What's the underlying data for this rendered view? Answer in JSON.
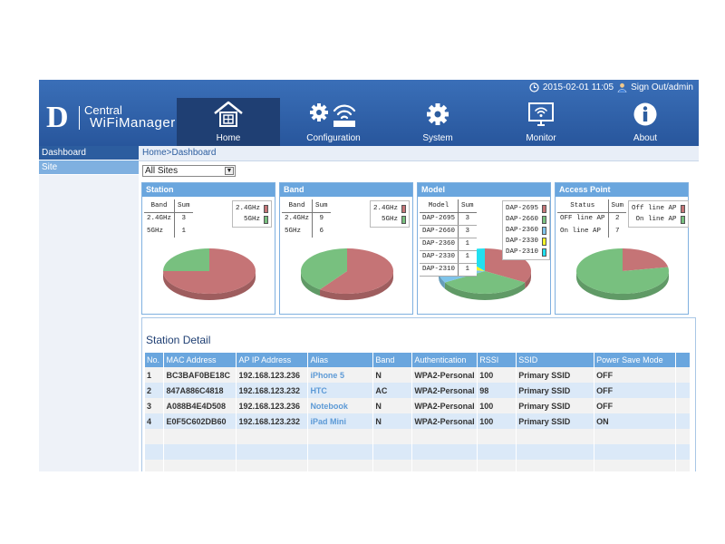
{
  "topbar": {
    "datetime": "2015-02-01 11:05",
    "sign_out": "Sign Out/admin"
  },
  "logo": {
    "letter": "D",
    "line1": "Central",
    "line2": "WiFiManager"
  },
  "nav": [
    {
      "label": "Home",
      "icon": "home-icon"
    },
    {
      "label": "Configuration",
      "icon": "configuration-icon"
    },
    {
      "label": "System",
      "icon": "gear-icon"
    },
    {
      "label": "Monitor",
      "icon": "monitor-icon"
    },
    {
      "label": "About",
      "icon": "info-icon"
    }
  ],
  "sidebar": {
    "items": [
      {
        "label": "Dashboard"
      },
      {
        "label": "Site"
      }
    ]
  },
  "breadcrumb": "Home>Dashboard",
  "site_select": {
    "value": "All Sites"
  },
  "colors": {
    "red": "#c57476",
    "green": "#78c07f",
    "yellow": "#f3f32a",
    "cyan": "#22e0f0",
    "blue": "#7fc4ea",
    "header": "#2c5d9f"
  },
  "panels": {
    "station": {
      "title": "Station",
      "headers": [
        "Band",
        "Sum"
      ],
      "rows": [
        [
          "2.4GHz",
          "3"
        ],
        [
          "5GHz",
          "1"
        ]
      ],
      "legend": [
        {
          "label": "2.4GHz",
          "color": "#c57476"
        },
        {
          "label": "5GHz",
          "color": "#78c07f"
        }
      ]
    },
    "band": {
      "title": "Band",
      "headers": [
        "Band",
        "Sum"
      ],
      "rows": [
        [
          "2.4GHz",
          "9"
        ],
        [
          "5GHz",
          "6"
        ]
      ],
      "legend": [
        {
          "label": "2.4GHz",
          "color": "#c57476"
        },
        {
          "label": "5GHz",
          "color": "#78c07f"
        }
      ]
    },
    "model": {
      "title": "Model",
      "headers": [
        "Model",
        "Sum"
      ],
      "rows": [
        [
          "DAP-2695",
          "3"
        ],
        [
          "DAP-2660",
          "3"
        ],
        [
          "DAP-2360",
          "1"
        ],
        [
          "DAP-2330",
          "1"
        ],
        [
          "DAP-2310",
          "1"
        ]
      ],
      "legend": [
        {
          "label": "DAP-2695",
          "color": "#c57476"
        },
        {
          "label": "DAP-2660",
          "color": "#78c07f"
        },
        {
          "label": "DAP-2360",
          "color": "#7fc4ea"
        },
        {
          "label": "DAP-2330",
          "color": "#f3f32a"
        },
        {
          "label": "DAP-2310",
          "color": "#22e0f0"
        }
      ]
    },
    "access_point": {
      "title": "Access Point",
      "headers": [
        "Status",
        "Sum"
      ],
      "rows": [
        [
          "OFF line AP",
          "2"
        ],
        [
          "On line AP",
          "7"
        ]
      ],
      "legend": [
        {
          "label": "Off line AP",
          "color": "#c57476"
        },
        {
          "label": "On line AP",
          "color": "#78c07f"
        }
      ]
    }
  },
  "chart_data": [
    {
      "type": "pie",
      "title": "Station",
      "categories": [
        "2.4GHz",
        "5GHz"
      ],
      "values": [
        3,
        1
      ],
      "colors": [
        "#c57476",
        "#78c07f"
      ]
    },
    {
      "type": "pie",
      "title": "Band",
      "categories": [
        "2.4GHz",
        "5GHz"
      ],
      "values": [
        9,
        6
      ],
      "colors": [
        "#c57476",
        "#78c07f"
      ]
    },
    {
      "type": "pie",
      "title": "Model",
      "categories": [
        "DAP-2695",
        "DAP-2660",
        "DAP-2360",
        "DAP-2330",
        "DAP-2310"
      ],
      "values": [
        3,
        3,
        1,
        1,
        1
      ],
      "colors": [
        "#c57476",
        "#78c07f",
        "#7fc4ea",
        "#f3f32a",
        "#22e0f0"
      ]
    },
    {
      "type": "pie",
      "title": "Access Point",
      "categories": [
        "OFF line AP",
        "On line AP"
      ],
      "values": [
        2,
        7
      ],
      "colors": [
        "#c57476",
        "#78c07f"
      ]
    }
  ],
  "station_detail": {
    "title": "Station Detail",
    "columns": [
      "No.",
      "MAC Address",
      "AP IP Address",
      "Alias",
      "Band",
      "Authentication",
      "RSSI",
      "SSID",
      "Power Save Mode",
      ""
    ],
    "rows": [
      [
        "1",
        "BC3BAF0BE18C",
        "192.168.123.236",
        "iPhone 5",
        "N",
        "WPA2-Personal",
        "100",
        "Primary SSID",
        "OFF",
        ""
      ],
      [
        "2",
        "847A886C4818",
        "192.168.123.232",
        "HTC",
        "AC",
        "WPA2-Personal",
        "98",
        "Primary SSID",
        "OFF",
        ""
      ],
      [
        "3",
        "A088B4E4D508",
        "192.168.123.236",
        "Notebook",
        "N",
        "WPA2-Personal",
        "100",
        "Primary SSID",
        "OFF",
        ""
      ],
      [
        "4",
        "E0F5C602DB60",
        "192.168.123.232",
        "iPad Mini",
        "N",
        "WPA2-Personal",
        "100",
        "Primary SSID",
        "ON",
        ""
      ],
      [
        "",
        "",
        "",
        "",
        "",
        "",
        "",
        "",
        "",
        ""
      ],
      [
        "",
        "",
        "",
        "",
        "",
        "",
        "",
        "",
        "",
        ""
      ],
      [
        "",
        "",
        "",
        "",
        "",
        "",
        "",
        "",
        "",
        ""
      ]
    ]
  }
}
